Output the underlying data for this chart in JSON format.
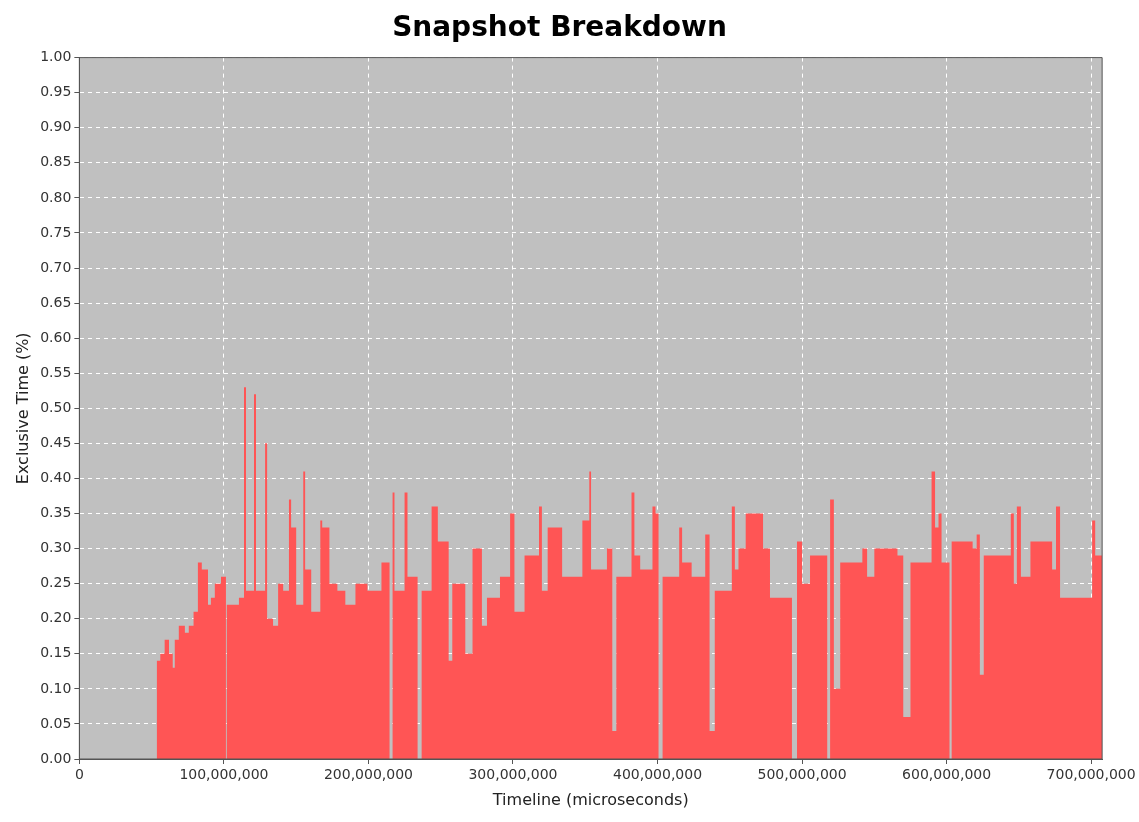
{
  "chart_data": {
    "type": "area",
    "title": "Snapshot Breakdown",
    "xlabel": "Timeline (microseconds)",
    "ylabel": "Exclusive Time (%)",
    "grid": true,
    "legend": false,
    "xlim": [
      0,
      707600000
    ],
    "xticks": [
      {
        "value": 0,
        "label": "0"
      },
      {
        "value": 100000000,
        "label": "100,000,000"
      },
      {
        "value": 200000000,
        "label": "200,000,000"
      },
      {
        "value": 300000000,
        "label": "300,000,000"
      },
      {
        "value": 400000000,
        "label": "400,000,000"
      },
      {
        "value": 500000000,
        "label": "500,000,000"
      },
      {
        "value": 600000000,
        "label": "600,000,000"
      },
      {
        "value": 700000000,
        "label": "700,000,000"
      }
    ],
    "ylim": [
      0,
      1
    ],
    "yticks": [
      {
        "value": 0,
        "label": "0.00"
      },
      {
        "value": 0.05,
        "label": "0.05"
      },
      {
        "value": 0.1,
        "label": "0.10"
      },
      {
        "value": 0.15,
        "label": "0.15"
      },
      {
        "value": 0.2,
        "label": "0.20"
      },
      {
        "value": 0.25,
        "label": "0.25"
      },
      {
        "value": 0.3,
        "label": "0.30"
      },
      {
        "value": 0.35,
        "label": "0.35"
      },
      {
        "value": 0.4,
        "label": "0.40"
      },
      {
        "value": 0.45,
        "label": "0.45"
      },
      {
        "value": 0.5,
        "label": "0.50"
      },
      {
        "value": 0.55,
        "label": "0.55"
      },
      {
        "value": 0.6,
        "label": "0.60"
      },
      {
        "value": 0.65,
        "label": "0.65"
      },
      {
        "value": 0.7,
        "label": "0.70"
      },
      {
        "value": 0.75,
        "label": "0.75"
      },
      {
        "value": 0.8,
        "label": "0.80"
      },
      {
        "value": 0.85,
        "label": "0.85"
      },
      {
        "value": 0.9,
        "label": "0.90"
      },
      {
        "value": 0.95,
        "label": "0.95"
      },
      {
        "value": 1,
        "label": "1.00"
      }
    ],
    "x": [
      53500000,
      56000000,
      59000000,
      62000000,
      64600000,
      66000000,
      68800000,
      73000000,
      75700000,
      79000000,
      82000000,
      84700000,
      89000000,
      91000000,
      93700000,
      98000000,
      101400000,
      102000000,
      105000000,
      107600000,
      110400000,
      113900000,
      115300000,
      120800000,
      122200000,
      128500000,
      129900000,
      134000000,
      137500000,
      141000000,
      145000000,
      146500000,
      150000000,
      154900000,
      156200000,
      160400000,
      166700000,
      168000000,
      173000000,
      178500000,
      184000000,
      191000000,
      199300000,
      209000000,
      214600000,
      216700000,
      218000000,
      225000000,
      227000000,
      234000000,
      236800000,
      243700000,
      248000000,
      255500000,
      258000000,
      267000000,
      272000000,
      278500000,
      282000000,
      291000000,
      298000000,
      301000000,
      308000000,
      318000000,
      320000000,
      324000000,
      334000000,
      338000000,
      348000000,
      352800000,
      354000000,
      365000000,
      368700000,
      371500000,
      382000000,
      384000000,
      388000000,
      396500000,
      398600000,
      400700000,
      403500000,
      415000000,
      417000000,
      423600000,
      433000000,
      436000000,
      439600000,
      451400000,
      453500000,
      456000000,
      461000000,
      473000000,
      477800000,
      493000000,
      496500000,
      500000000,
      505500000,
      517400000,
      519400000,
      522000000,
      526400000,
      541700000,
      545000000,
      550000000,
      566000000,
      570000000,
      575000000,
      589600000,
      592000000,
      594400000,
      596500000,
      602000000,
      603500000,
      618000000,
      620800000,
      623000000,
      625700000,
      644400000,
      646500000,
      648600000,
      651400000,
      658000000,
      673000000,
      675700000,
      678500000,
      685400000,
      700700000,
      702800000,
      707600000
    ],
    "series": [
      {
        "color": "#ff5555",
        "values": [
          0.14,
          0.15,
          0.17,
          0.15,
          0.13,
          0.17,
          0.19,
          0.18,
          0.19,
          0.21,
          0.28,
          0.27,
          0.22,
          0.23,
          0.25,
          0.26,
          0,
          0.22,
          0.22,
          0.22,
          0.23,
          0.53,
          0.24,
          0.52,
          0.24,
          0.45,
          0.2,
          0.19,
          0.25,
          0.24,
          0.37,
          0.33,
          0.22,
          0.41,
          0.27,
          0.21,
          0.34,
          0.33,
          0.25,
          0.24,
          0.22,
          0.25,
          0.24,
          0.28,
          0,
          0.38,
          0.24,
          0.38,
          0.26,
          0,
          0.24,
          0.36,
          0.31,
          0.14,
          0.25,
          0.15,
          0.3,
          0.19,
          0.23,
          0.26,
          0.35,
          0.21,
          0.29,
          0.36,
          0.24,
          0.33,
          0.26,
          0.26,
          0.34,
          0.41,
          0.27,
          0.3,
          0.04,
          0.26,
          0.38,
          0.29,
          0.27,
          0.36,
          0.35,
          0,
          0.26,
          0.33,
          0.28,
          0.26,
          0.32,
          0.04,
          0.24,
          0.36,
          0.27,
          0.3,
          0.35,
          0.3,
          0.23,
          0,
          0.31,
          0.25,
          0.29,
          0,
          0.37,
          0.1,
          0.28,
          0.3,
          0.26,
          0.3,
          0.29,
          0.06,
          0.28,
          0.41,
          0.33,
          0.35,
          0.28,
          0,
          0.31,
          0.3,
          0.32,
          0.12,
          0.29,
          0.35,
          0.25,
          0.36,
          0.26,
          0.31,
          0.27,
          0.36,
          0.23,
          0.23,
          0.34,
          0.29,
          0.29
        ]
      }
    ]
  }
}
